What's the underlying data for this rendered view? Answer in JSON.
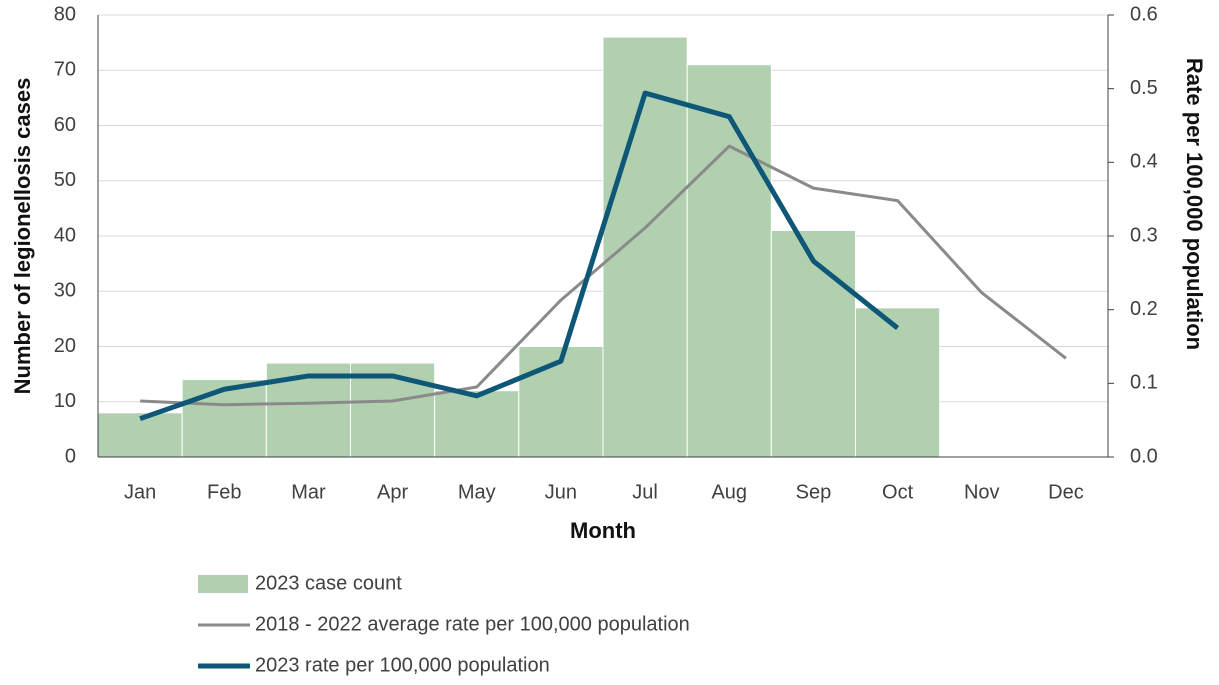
{
  "chart_data": {
    "type": "bar",
    "x_label": "Month",
    "y_label": "Number of legionellosis cases",
    "y2_label": "Rate per 100,000 population",
    "categories": [
      "Jan",
      "Feb",
      "Mar",
      "Apr",
      "May",
      "Jun",
      "Jul",
      "Aug",
      "Sep",
      "Oct",
      "Nov",
      "Dec"
    ],
    "series": [
      {
        "name": "2023 case count",
        "type": "bar",
        "color": "#b0d0b0",
        "values": [
          8,
          14,
          17,
          17,
          12,
          20,
          76,
          71,
          41,
          27,
          null,
          null
        ]
      },
      {
        "name": "2018 - 2022 average rate per 100,000 population",
        "type": "line",
        "axis": "y2",
        "color": "#8a8a8a",
        "values": [
          0.076,
          0.071,
          0.073,
          0.076,
          0.095,
          0.213,
          0.311,
          0.422,
          0.365,
          0.348,
          0.223,
          0.134
        ]
      },
      {
        "name": "2023 rate per 100,000 population",
        "type": "line",
        "axis": "y2",
        "color": "#0e5777",
        "values": [
          0.052,
          0.092,
          0.11,
          0.11,
          0.083,
          0.13,
          0.494,
          0.462,
          0.266,
          0.175,
          null,
          null
        ]
      }
    ],
    "ylim": [
      0,
      80
    ],
    "yticks": [
      0,
      10,
      20,
      30,
      40,
      50,
      60,
      70,
      80
    ],
    "y2lim": [
      0,
      0.6
    ],
    "y2ticks": [
      {
        "value": 0,
        "label": "0.0"
      },
      0.1,
      0.2,
      0.3,
      0.4,
      0.5,
      0.6
    ],
    "grid": true
  }
}
